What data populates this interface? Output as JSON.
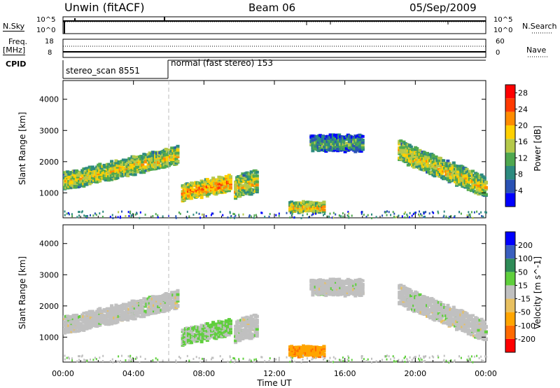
{
  "header": {
    "station": "Unwin (fitACF)",
    "beam": "Beam 06",
    "date": "05/Sep/2009"
  },
  "strips": {
    "nsky_label": "N.Sky",
    "nsky_ticks": [
      "10^5",
      "10^0"
    ],
    "nsearch_label": "N.Search",
    "freq_label": "Freq.",
    "freq_unit": "[MHz]",
    "freq_ticks": [
      "18",
      "8"
    ],
    "nave_label": "Nave",
    "nave_ticks": [
      "60",
      "0"
    ],
    "cpid_label": "CPID",
    "cpid_segments": [
      "stereo_scan 8551",
      "normal (fast stereo) 153"
    ]
  },
  "colors": {
    "power": [
      "#0000ff",
      "#2a52b4",
      "#2d8a7f",
      "#4fa84f",
      "#b5c94a",
      "#ffd000",
      "#ff8c00",
      "#ff3a00",
      "#ff0000"
    ],
    "velocity": [
      "#ff0000",
      "#ff6a00",
      "#ffa500",
      "#e8c060",
      "#c0c0c0",
      "#5fcf3c",
      "#2e8b57",
      "#3a5fbf",
      "#0000ff"
    ]
  },
  "chart_data": [
    {
      "type": "heatmap",
      "quantity": "Power",
      "xlabel": "Time UT",
      "ylabel": "Slant Range [km]",
      "x_ticks": [
        "00:00",
        "04:00",
        "08:00",
        "12:00",
        "16:00",
        "20:00",
        "00:00"
      ],
      "xlim_hours": [
        0,
        24
      ],
      "y_ticks": [
        1000,
        2000,
        3000,
        4000
      ],
      "ylim_km": [
        200,
        4600
      ],
      "colorbar_label": "Power [dB]",
      "colorbar_ticks": [
        4,
        8,
        12,
        16,
        20,
        24,
        28
      ],
      "colorbar_range": [
        0,
        30
      ],
      "regions": [
        {
          "t": [
            0.0,
            6.5
          ],
          "r_start": [
            1150,
            2000
          ],
          "width": 550,
          "value": 10
        },
        {
          "t": [
            6.7,
            9.5
          ],
          "r_start": [
            800,
            1150
          ],
          "width": 500,
          "value": 14
        },
        {
          "t": [
            9.7,
            11.0
          ],
          "r_start": [
            900,
            1100
          ],
          "width": 700,
          "value": 10
        },
        {
          "t": [
            12.8,
            14.8
          ],
          "r_start": [
            450,
            450
          ],
          "width": 300,
          "value": 12
        },
        {
          "t": [
            14.0,
            17.0
          ],
          "r_start": [
            2400,
            2400
          ],
          "width": 500,
          "value": 4
        },
        {
          "t": [
            19.0,
            24.0
          ],
          "r_start": [
            2100,
            900
          ],
          "width": 650,
          "value": 10
        }
      ]
    },
    {
      "type": "heatmap",
      "quantity": "Velocity",
      "xlabel": "Time UT",
      "ylabel": "Slant Range [km]",
      "x_ticks": [
        "00:00",
        "04:00",
        "08:00",
        "12:00",
        "16:00",
        "20:00",
        "00:00"
      ],
      "xlim_hours": [
        0,
        24
      ],
      "y_ticks": [
        1000,
        2000,
        3000,
        4000
      ],
      "ylim_km": [
        200,
        4600
      ],
      "colorbar_label": "Velocity [m s^-1]",
      "colorbar_ticks": [
        "200",
        "100",
        "50",
        "15",
        "-15",
        "-50",
        "-100",
        "-200"
      ],
      "colorbar_range": [
        -250,
        250
      ],
      "regions": [
        {
          "t": [
            0.0,
            6.5
          ],
          "r_start": [
            1150,
            2000
          ],
          "width": 550,
          "value": 0
        },
        {
          "t": [
            6.7,
            9.5
          ],
          "r_start": [
            800,
            1150
          ],
          "width": 500,
          "value": 30
        },
        {
          "t": [
            9.7,
            11.0
          ],
          "r_start": [
            900,
            1100
          ],
          "width": 700,
          "value": 0
        },
        {
          "t": [
            12.8,
            14.8
          ],
          "r_start": [
            450,
            450
          ],
          "width": 300,
          "value": -120
        },
        {
          "t": [
            14.0,
            17.0
          ],
          "r_start": [
            2400,
            2400
          ],
          "width": 500,
          "value": 0
        },
        {
          "t": [
            19.0,
            24.0
          ],
          "r_start": [
            2100,
            900
          ],
          "width": 650,
          "value": 0
        }
      ]
    }
  ]
}
